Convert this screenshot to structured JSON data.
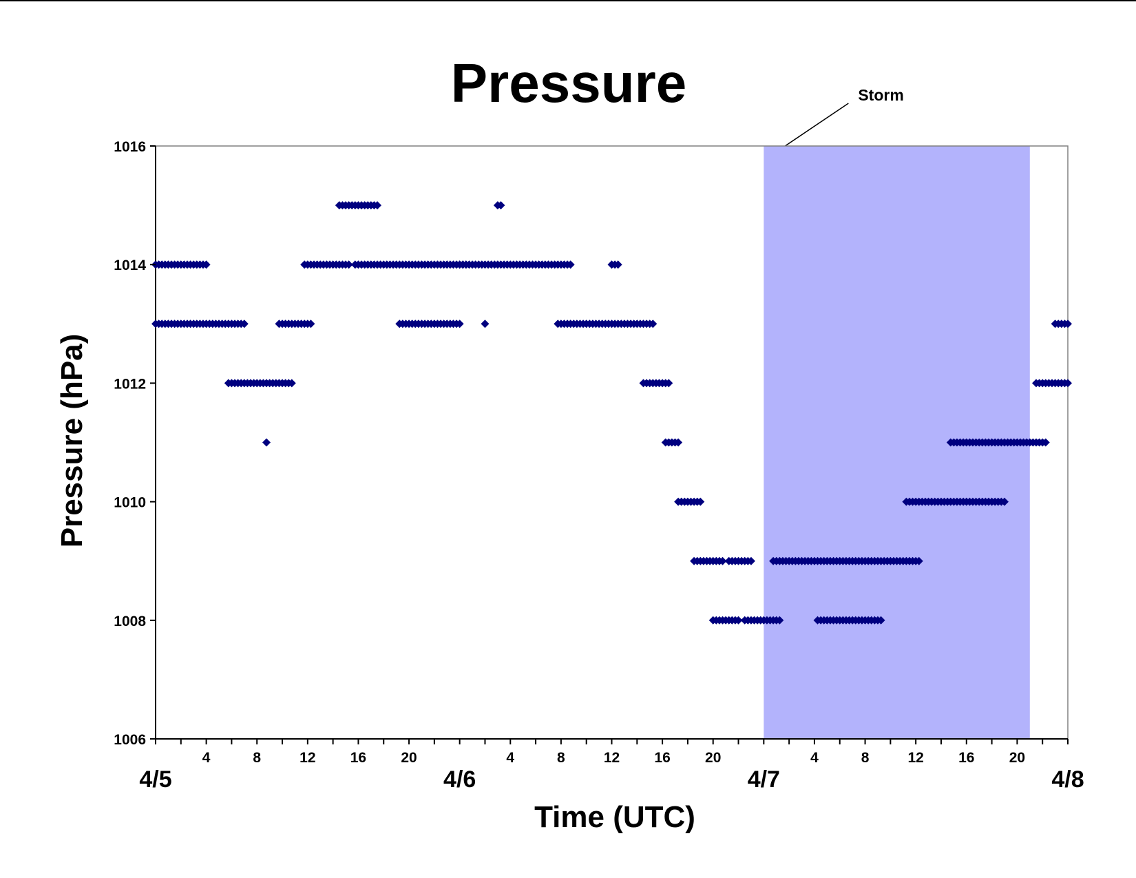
{
  "chart_data": {
    "type": "scatter",
    "title": "Pressure",
    "xlabel": "Time (UTC)",
    "ylabel": "Pressure (hPa)",
    "ylim": [
      1006,
      1016
    ],
    "y_ticks": [
      "1006",
      "1008",
      "1010",
      "1012",
      "1014",
      "1016"
    ],
    "xlim": [
      "4/5 00:00",
      "4/8 00:00"
    ],
    "x_hour_ticks": [
      "4",
      "8",
      "12",
      "16",
      "20"
    ],
    "x_date_labels": [
      "4/5",
      "4/6",
      "4/7",
      "4/8"
    ],
    "annotation": {
      "text": "Storm",
      "span": [
        "4/7 00:00",
        "4/7 21:00"
      ]
    },
    "colors": {
      "points": "#00007f",
      "storm_band": "#b3b3fc",
      "axes": "#808080"
    },
    "grid": false,
    "legend": "none",
    "series": [
      {
        "runs": [
          {
            "y": 1013,
            "start": "4/5 00:00",
            "end": "4/5 07:00"
          },
          {
            "y": 1014,
            "start": "4/5 00:00",
            "end": "4/5 04:00"
          },
          {
            "y": 1012,
            "start": "4/5 05:45",
            "end": "4/5 10:45"
          },
          {
            "y": 1011,
            "start": "4/5 08:45",
            "end": "4/5 08:45"
          },
          {
            "y": 1013,
            "start": "4/5 09:45",
            "end": "4/5 12:15"
          },
          {
            "y": 1014,
            "start": "4/5 11:45",
            "end": "4/5 15:15"
          },
          {
            "y": 1015,
            "start": "4/5 14:30",
            "end": "4/5 17:30"
          },
          {
            "y": 1014,
            "start": "4/5 15:45",
            "end": "4/6 00:30"
          },
          {
            "y": 1013,
            "start": "4/5 19:15",
            "end": "4/6 00:00"
          },
          {
            "y": 1013,
            "start": "4/6 02:00",
            "end": "4/6 02:00"
          },
          {
            "y": 1015,
            "start": "4/6 03:00",
            "end": "4/6 03:15"
          },
          {
            "y": 1014,
            "start": "4/6 00:00",
            "end": "4/6 08:45"
          },
          {
            "y": 1013,
            "start": "4/6 07:45",
            "end": "4/6 15:15"
          },
          {
            "y": 1014,
            "start": "4/6 12:00",
            "end": "4/6 12:30"
          },
          {
            "y": 1012,
            "start": "4/6 14:30",
            "end": "4/6 16:30"
          },
          {
            "y": 1011,
            "start": "4/6 16:15",
            "end": "4/6 17:15"
          },
          {
            "y": 1010,
            "start": "4/6 17:15",
            "end": "4/6 19:00"
          },
          {
            "y": 1009,
            "start": "4/6 18:30",
            "end": "4/6 20:45"
          },
          {
            "y": 1008,
            "start": "4/6 20:00",
            "end": "4/6 22:00"
          },
          {
            "y": 1009,
            "start": "4/6 21:15",
            "end": "4/6 23:00"
          },
          {
            "y": 1008,
            "start": "4/6 22:30",
            "end": "4/7 01:15"
          },
          {
            "y": 1009,
            "start": "4/7 00:45",
            "end": "4/7 12:15"
          },
          {
            "y": 1008,
            "start": "4/7 04:15",
            "end": "4/7 09:15"
          },
          {
            "y": 1010,
            "start": "4/7 11:15",
            "end": "4/7 19:00"
          },
          {
            "y": 1011,
            "start": "4/7 14:45",
            "end": "4/7 22:15"
          },
          {
            "y": 1012,
            "start": "4/7 21:30",
            "end": "4/8 00:00"
          },
          {
            "y": 1013,
            "start": "4/7 23:00",
            "end": "4/8 00:00"
          }
        ]
      }
    ]
  }
}
